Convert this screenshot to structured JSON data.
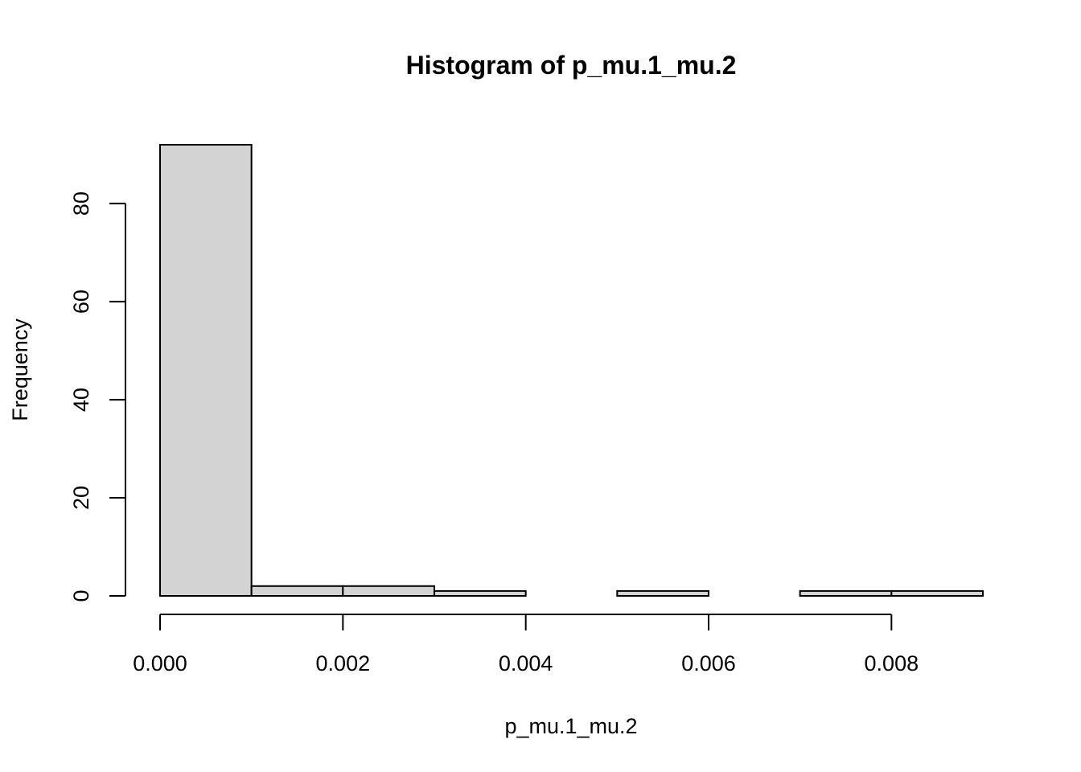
{
  "chart_data": {
    "type": "bar",
    "title": "Histogram of p_mu.1_mu.2",
    "xlabel": "p_mu.1_mu.2",
    "ylabel": "Frequency",
    "bins": [
      {
        "start": 0.0,
        "end": 0.001,
        "count": 92
      },
      {
        "start": 0.001,
        "end": 0.002,
        "count": 2
      },
      {
        "start": 0.002,
        "end": 0.003,
        "count": 2
      },
      {
        "start": 0.003,
        "end": 0.004,
        "count": 1
      },
      {
        "start": 0.004,
        "end": 0.005,
        "count": 0
      },
      {
        "start": 0.005,
        "end": 0.006,
        "count": 1
      },
      {
        "start": 0.006,
        "end": 0.007,
        "count": 0
      },
      {
        "start": 0.007,
        "end": 0.008,
        "count": 1
      },
      {
        "start": 0.008,
        "end": 0.009,
        "count": 1
      }
    ],
    "xlim": [
      0.0,
      0.009
    ],
    "ylim": [
      0,
      92
    ],
    "x_ticks": [
      0.0,
      0.002,
      0.004,
      0.006,
      0.008
    ],
    "x_tick_labels": [
      "0.000",
      "0.002",
      "0.004",
      "0.006",
      "0.008"
    ],
    "y_ticks": [
      0,
      20,
      40,
      60,
      80
    ],
    "y_tick_labels": [
      "0",
      "20",
      "40",
      "60",
      "80"
    ],
    "grid": false,
    "legend": "none",
    "bar_color": "#d3d3d3",
    "edge_color": "#000000"
  }
}
